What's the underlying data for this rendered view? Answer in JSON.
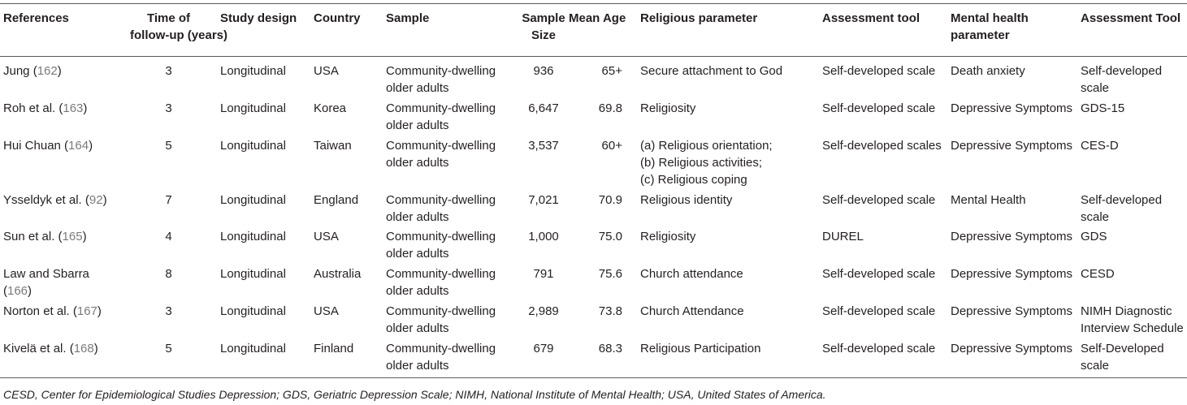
{
  "table": {
    "headers": [
      {
        "key": "references",
        "lines": [
          "References"
        ]
      },
      {
        "key": "time",
        "lines": [
          "Time of",
          "follow-up (years)"
        ]
      },
      {
        "key": "design",
        "lines": [
          "Study design"
        ]
      },
      {
        "key": "country",
        "lines": [
          "Country"
        ]
      },
      {
        "key": "sample",
        "lines": [
          "Sample"
        ]
      },
      {
        "key": "size",
        "lines": [
          "Sample",
          "Size"
        ]
      },
      {
        "key": "age",
        "lines": [
          "Mean Age"
        ]
      },
      {
        "key": "religious",
        "lines": [
          "Religious parameter"
        ]
      },
      {
        "key": "tool",
        "lines": [
          "Assessment tool"
        ]
      },
      {
        "key": "mental",
        "lines": [
          "Mental health",
          "parameter"
        ]
      },
      {
        "key": "tool2",
        "lines": [
          "Assessment Tool"
        ]
      }
    ],
    "rows": [
      {
        "references": [
          [
            "Jung (",
            "162",
            ")"
          ]
        ],
        "time": [
          "3"
        ],
        "design": [
          "Longitudinal"
        ],
        "country": [
          "USA"
        ],
        "sample": [
          "Community-dwelling",
          "older adults"
        ],
        "size": [
          "936"
        ],
        "age": [
          "65+"
        ],
        "religious": [
          "Secure attachment to God"
        ],
        "tool": [
          "Self-developed scale"
        ],
        "mental": [
          "Death anxiety"
        ],
        "tool2": [
          "Self-developed",
          "scale"
        ]
      },
      {
        "references": [
          [
            "Roh et al. (",
            "163",
            ")"
          ]
        ],
        "time": [
          "3"
        ],
        "design": [
          "Longitudinal"
        ],
        "country": [
          "Korea"
        ],
        "sample": [
          "Community-dwelling",
          "older adults"
        ],
        "size": [
          "6,647"
        ],
        "age": [
          "69.8"
        ],
        "religious": [
          "Religiosity"
        ],
        "tool": [
          "Self-developed scale"
        ],
        "mental": [
          "Depressive Symptoms"
        ],
        "tool2": [
          "GDS-15"
        ]
      },
      {
        "references": [
          [
            "Hui Chuan (",
            "164",
            ")"
          ]
        ],
        "time": [
          "5"
        ],
        "design": [
          "Longitudinal"
        ],
        "country": [
          "Taiwan"
        ],
        "sample": [
          "Community-dwelling",
          "older adults"
        ],
        "size": [
          "3,537"
        ],
        "age": [
          "60+"
        ],
        "religious": [
          "(a) Religious orientation;",
          "(b) Religious activities;",
          "(c) Religious coping"
        ],
        "tool": [
          "Self-developed scales"
        ],
        "mental": [
          "Depressive Symptoms"
        ],
        "tool2": [
          "CES-D"
        ]
      },
      {
        "references": [
          [
            "Ysseldyk et al. (",
            "92",
            ")"
          ]
        ],
        "time": [
          "7"
        ],
        "design": [
          "Longitudinal"
        ],
        "country": [
          "England"
        ],
        "sample": [
          "Community-dwelling",
          "older adults"
        ],
        "size": [
          "7,021"
        ],
        "age": [
          "70.9"
        ],
        "religious": [
          "Religious identity"
        ],
        "tool": [
          "Self-developed scale"
        ],
        "mental": [
          "Mental Health"
        ],
        "tool2": [
          "Self-developed",
          "scale"
        ]
      },
      {
        "references": [
          [
            "Sun et al. (",
            "165",
            ")"
          ]
        ],
        "time": [
          "4"
        ],
        "design": [
          "Longitudinal"
        ],
        "country": [
          "USA"
        ],
        "sample": [
          "Community-dwelling",
          "older adults"
        ],
        "size": [
          "1,000"
        ],
        "age": [
          "75.0"
        ],
        "religious": [
          "Religiosity"
        ],
        "tool": [
          "DUREL"
        ],
        "mental": [
          "Depressive Symptoms"
        ],
        "tool2": [
          "GDS"
        ]
      },
      {
        "references": [
          [
            "Law and Sbarra",
            "",
            ""
          ],
          [
            "(",
            "166",
            ")"
          ]
        ],
        "time": [
          "8"
        ],
        "design": [
          "Longitudinal"
        ],
        "country": [
          "Australia"
        ],
        "sample": [
          "Community-dwelling",
          "older adults"
        ],
        "size": [
          "791"
        ],
        "age": [
          "75.6"
        ],
        "religious": [
          "Church attendance"
        ],
        "tool": [
          "Self-developed scale"
        ],
        "mental": [
          "Depressive Symptoms"
        ],
        "tool2": [
          "CESD"
        ]
      },
      {
        "references": [
          [
            "Norton et al. (",
            "167",
            ")"
          ]
        ],
        "time": [
          "3"
        ],
        "design": [
          "Longitudinal"
        ],
        "country": [
          "USA"
        ],
        "sample": [
          "Community-dwelling",
          "older adults"
        ],
        "size": [
          "2,989"
        ],
        "age": [
          "73.8"
        ],
        "religious": [
          "Church Attendance"
        ],
        "tool": [
          "Self-developed scale"
        ],
        "mental": [
          "Depressive Symptoms"
        ],
        "tool2": [
          "NIMH Diagnostic",
          "Interview Schedule"
        ]
      },
      {
        "references": [
          [
            "Kivelä et al. (",
            "168",
            ")"
          ]
        ],
        "time": [
          "5"
        ],
        "design": [
          "Longitudinal"
        ],
        "country": [
          "Finland"
        ],
        "sample": [
          "Community-dwelling",
          "older adults"
        ],
        "size": [
          "679"
        ],
        "age": [
          "68.3"
        ],
        "religious": [
          "Religious Participation"
        ],
        "tool": [
          "Self-developed scale"
        ],
        "mental": [
          "Depressive Symptoms"
        ],
        "tool2": [
          "Self-Developed",
          "scale"
        ]
      }
    ]
  },
  "footnote": "CESD, Center for Epidemiological Studies Depression; GDS, Geriatric Depression Scale; NIMH, National Institute of Mental Health; USA, United States of America."
}
